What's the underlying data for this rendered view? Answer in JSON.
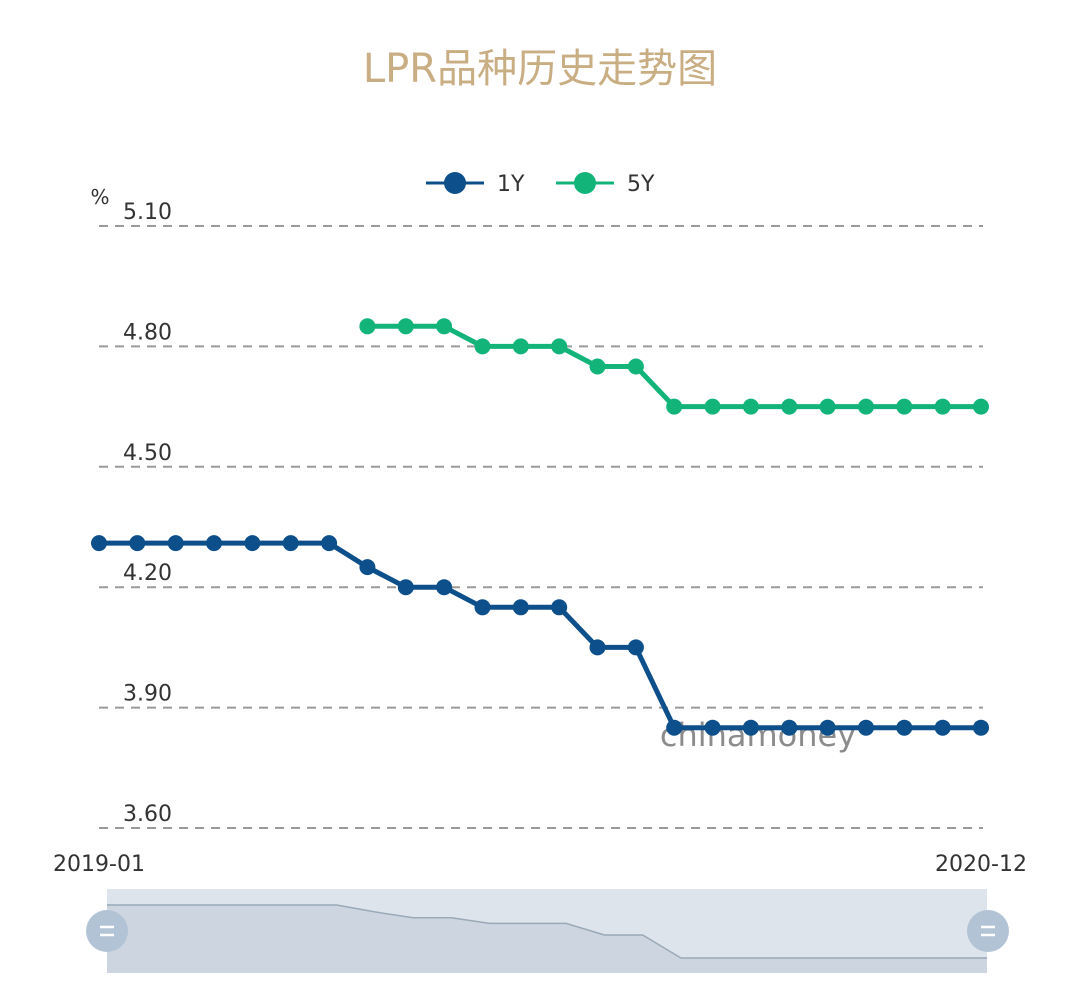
{
  "chart_data": {
    "type": "line",
    "title": "LPR品种历史走势图",
    "unit_label": "%",
    "watermark": "chinamoney",
    "x_start_label": "2019-01",
    "x_end_label": "2020-12",
    "y_ticks": [
      "5.10",
      "4.80",
      "4.50",
      "4.20",
      "3.90",
      "3.60"
    ],
    "ylim": [
      3.6,
      5.1
    ],
    "grid": "dashed horizontal",
    "legend_position": "top-center",
    "colors": {
      "title": "#c9ae84",
      "series_1Y": "#0d4f8b",
      "series_5Y": "#13b47a",
      "grid": "#9a9a9a",
      "axis_text": "#333333",
      "watermark": "#8c8c8c",
      "zoom_bg": "#dde4ec",
      "zoom_area": "#cdd6e0",
      "zoom_line": "#9aa9b8",
      "zoom_handle": "#b3c3d6"
    },
    "x": [
      "2019-01",
      "2019-02",
      "2019-03",
      "2019-04",
      "2019-05",
      "2019-06",
      "2019-07",
      "2019-08",
      "2019-09",
      "2019-10",
      "2019-11",
      "2019-12",
      "2020-01",
      "2020-02",
      "2020-03",
      "2020-04",
      "2020-05",
      "2020-06",
      "2020-07",
      "2020-08",
      "2020-09",
      "2020-10",
      "2020-11",
      "2020-12"
    ],
    "series": [
      {
        "name": "1Y",
        "values": [
          4.31,
          4.31,
          4.31,
          4.31,
          4.31,
          4.31,
          4.31,
          4.25,
          4.2,
          4.2,
          4.15,
          4.15,
          4.15,
          4.05,
          4.05,
          3.85,
          3.85,
          3.85,
          3.85,
          3.85,
          3.85,
          3.85,
          3.85,
          3.85
        ]
      },
      {
        "name": "5Y",
        "values": [
          null,
          null,
          null,
          null,
          null,
          null,
          null,
          4.85,
          4.85,
          4.85,
          4.8,
          4.8,
          4.8,
          4.75,
          4.75,
          4.65,
          4.65,
          4.65,
          4.65,
          4.65,
          4.65,
          4.65,
          4.65,
          4.65
        ]
      }
    ]
  }
}
